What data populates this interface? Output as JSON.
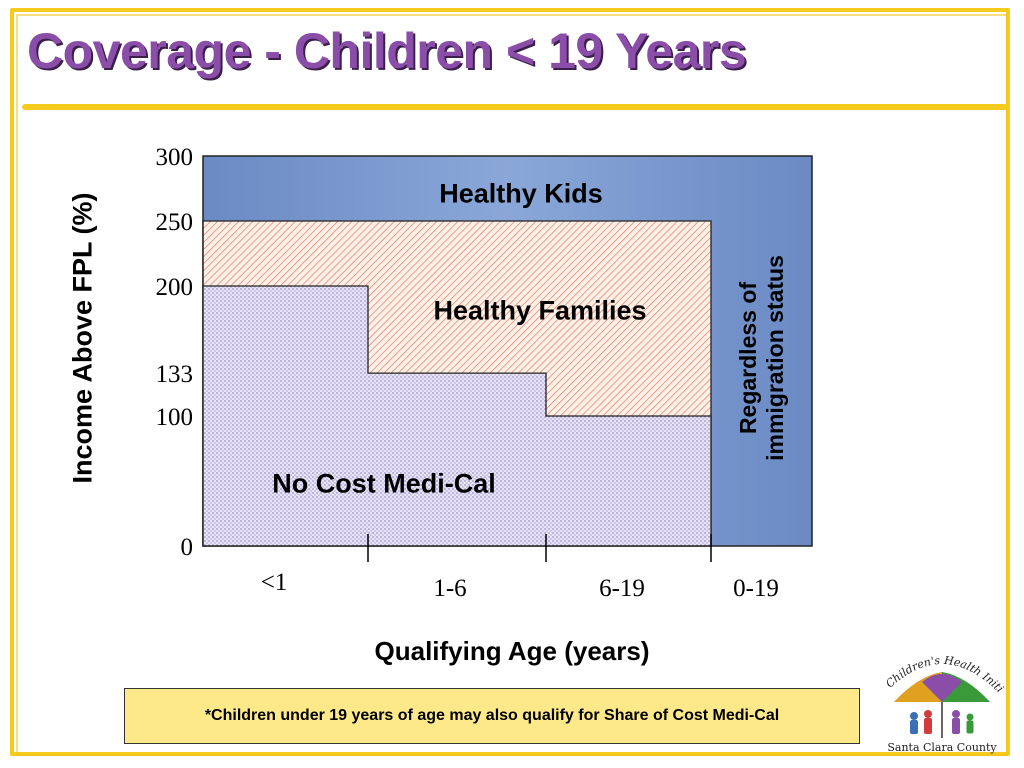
{
  "slide": {
    "title": "Coverage - Children < 19 Years",
    "footnote": "*Children under 19 years of age may also qualify for Share of Cost Medi-Cal"
  },
  "logo": {
    "name": "Children's Health Initiative",
    "county": "Santa Clara County"
  },
  "colors": {
    "title": "#8a4ea8",
    "frame": "#f5cc1e",
    "healthy_kids": "#7c9bd0",
    "healthy_families_hatch": "#e27a6a",
    "medi_cal_dots": "#9b93cc",
    "footnote_bg": "#fde98a"
  },
  "chart_data": {
    "type": "area",
    "xlabel": "Qualifying Age (years)",
    "ylabel": "Income Above FPL (%)",
    "categories": [
      "<1",
      "1-6",
      "6-19",
      "0-19"
    ],
    "y_ticks": [
      0,
      100,
      133,
      200,
      250,
      300
    ],
    "y_tick_labels": [
      "0",
      "100",
      "133",
      "200",
      "250",
      "300"
    ],
    "ylim": [
      0,
      300
    ],
    "grid": false,
    "series": [
      {
        "name": "No Cost Medi-Cal",
        "values": [
          200,
          133,
          100,
          0
        ]
      },
      {
        "name": "Healthy Families",
        "values": [
          250,
          250,
          250,
          0
        ]
      },
      {
        "name": "Healthy Kids",
        "values": [
          300,
          300,
          300,
          300
        ]
      }
    ],
    "annotations": [
      "Regardless of",
      "immigration status"
    ]
  }
}
